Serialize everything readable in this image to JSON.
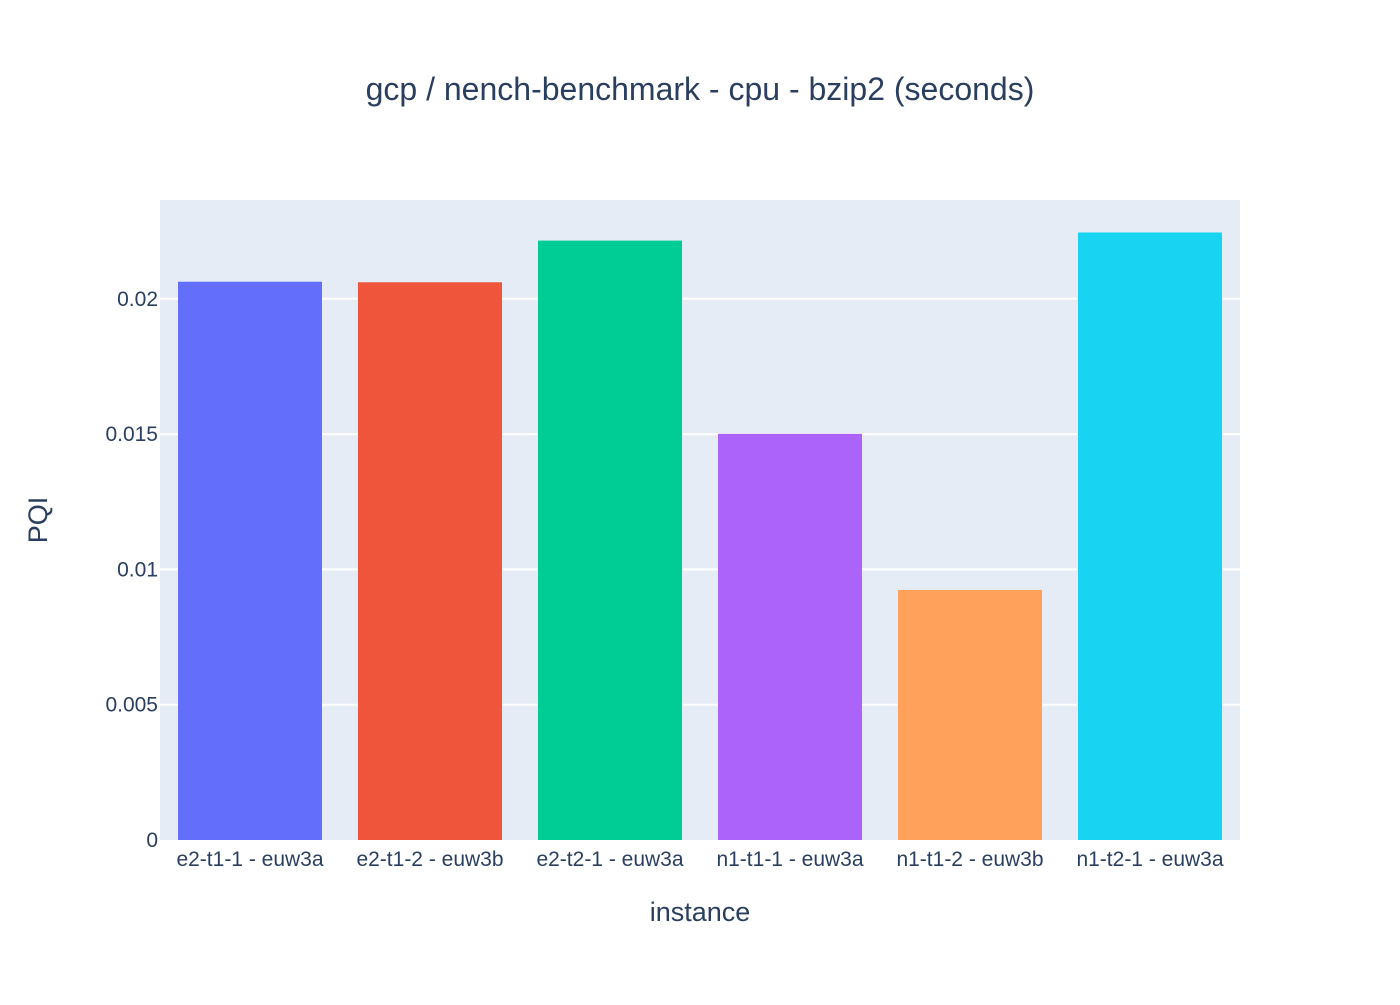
{
  "chart_data": {
    "type": "bar",
    "title": "gcp / nench-benchmark - cpu - bzip2 (seconds)",
    "xlabel": "instance",
    "ylabel": "PQI",
    "categories": [
      "e2-t1-1 - euw3a",
      "e2-t1-2 - euw3b",
      "e2-t2-1 - euw3a",
      "n1-t1-1 - euw3a",
      "n1-t1-2 - euw3b",
      "n1-t2-1 - euw3a"
    ],
    "values": [
      0.02063,
      0.02061,
      0.02215,
      0.01501,
      0.00924,
      0.02245
    ],
    "colors": [
      "#636efa",
      "#ef553b",
      "#00cc96",
      "#ab63fa",
      "#ffa15a",
      "#19d3f3"
    ],
    "ylim": [
      0,
      0.02365
    ],
    "yticks": [
      0,
      0.005,
      0.01,
      0.015,
      0.02
    ],
    "ytick_labels": [
      "0",
      "0.005",
      "0.01",
      "0.015",
      "0.02"
    ],
    "grid": true,
    "legend": false,
    "plot_background": "#e5ecf6",
    "text_color": "#2a3f5f",
    "grid_color": "#ffffff"
  }
}
